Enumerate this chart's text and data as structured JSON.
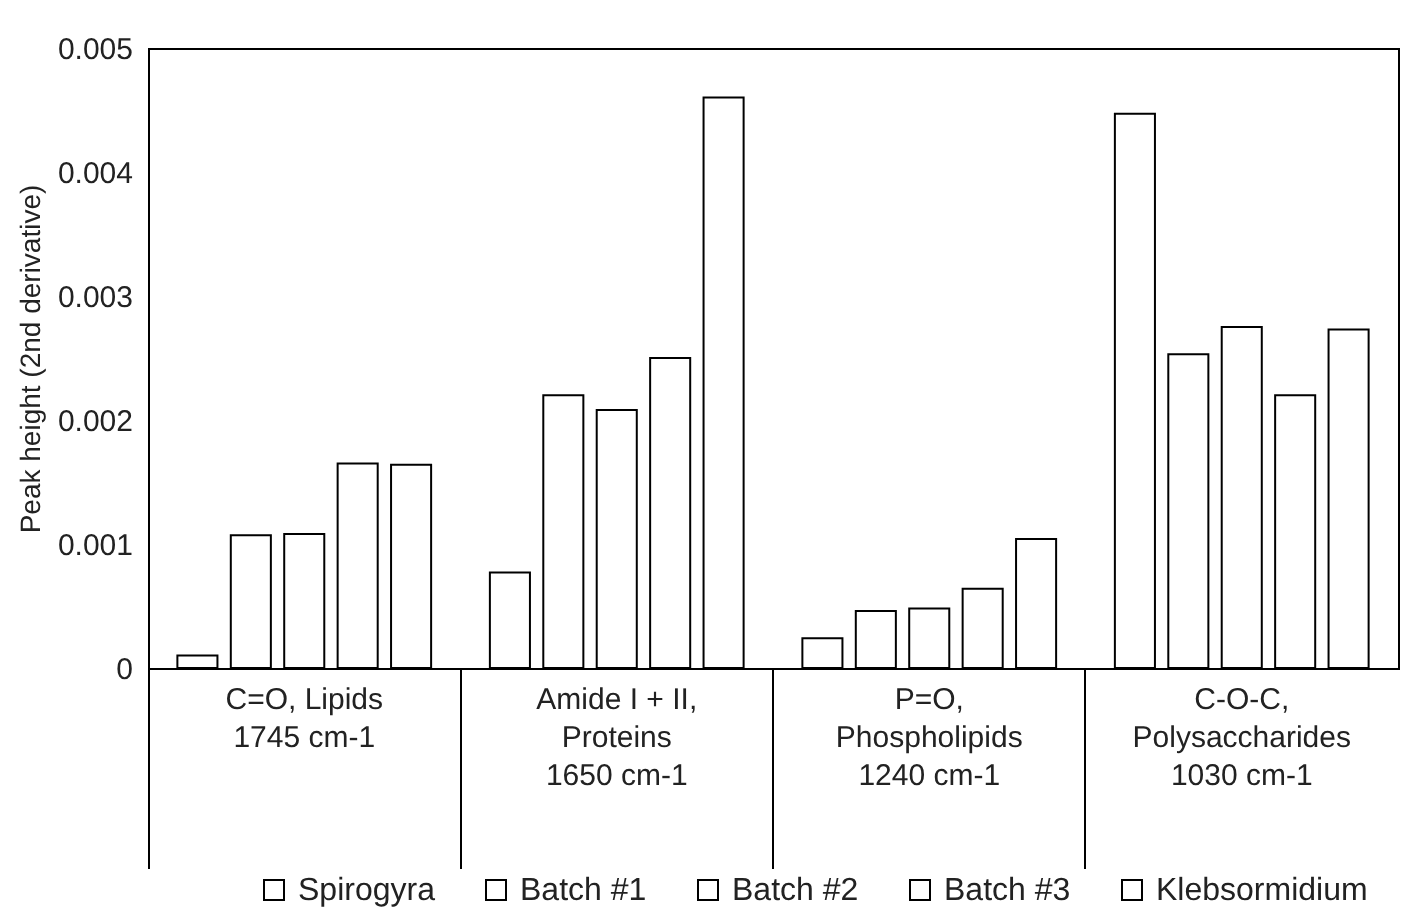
{
  "chart_data": {
    "type": "bar",
    "ylabel": "Peak height (2nd derivative)",
    "categories": [
      "C=O, Lipids\n1745 cm-1",
      "Amide I + II, Proteins\n1650 cm-1",
      "P=O, Phospholipids\n1240 cm-1",
      "C-O-C, Polysaccharides\n1030 cm-1"
    ],
    "series": [
      {
        "name": "Spirogyra",
        "color": "#ffffff",
        "values": [
          0.0001,
          0.00077,
          0.00024,
          0.00447
        ]
      },
      {
        "name": "Batch #1",
        "color": "#ffffff",
        "values": [
          0.00107,
          0.0022,
          0.00046,
          0.00253
        ]
      },
      {
        "name": "Batch #2",
        "color": "#ffffff",
        "values": [
          0.00108,
          0.00208,
          0.00048,
          0.00275
        ]
      },
      {
        "name": "Batch #3",
        "color": "#ffffff",
        "values": [
          0.00165,
          0.0025,
          0.00064,
          0.0022
        ]
      },
      {
        "name": "Klebsormidium",
        "color": "#ffffff",
        "values": [
          0.00164,
          0.0046,
          0.00104,
          0.00273
        ]
      }
    ],
    "ylim": [
      0,
      0.005
    ],
    "yticks": [
      0,
      0.001,
      0.002,
      0.003,
      0.004,
      0.005
    ],
    "grid": false,
    "legend": "bottom"
  }
}
